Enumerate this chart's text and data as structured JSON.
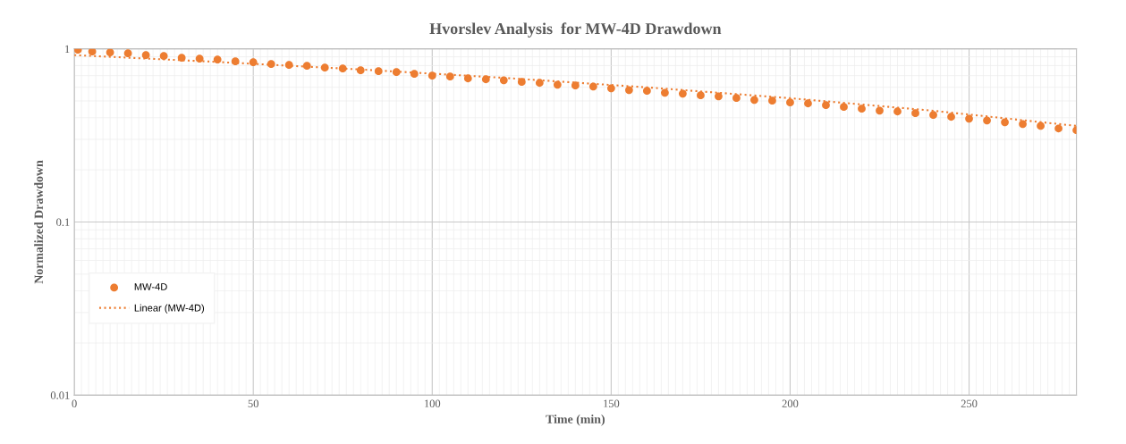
{
  "chart_data": {
    "type": "scatter",
    "title": "Hvorslev Analysis  for MW-4D Drawdown",
    "xlabel": "Time (min)",
    "ylabel": "Normalized Drawdown",
    "log": "y",
    "grid": true,
    "legend": "left",
    "xlim": [
      0,
      280
    ],
    "xticks": [
      0,
      50,
      100,
      150,
      200,
      250
    ],
    "ylim": [
      0.01,
      1
    ],
    "yticks": [
      0.01,
      0.1,
      1
    ],
    "series": [
      {
        "name": "MW-4D",
        "type": "scatter",
        "marker": "circle",
        "color": "#ed7d31",
        "x": [
          1,
          5,
          10,
          15,
          20,
          25,
          30,
          35,
          40,
          45,
          50,
          55,
          60,
          65,
          70,
          75,
          80,
          85,
          90,
          95,
          100,
          105,
          110,
          115,
          120,
          125,
          130,
          135,
          140,
          145,
          150,
          155,
          160,
          165,
          170,
          175,
          180,
          185,
          190,
          195,
          200,
          205,
          210,
          215,
          220,
          225,
          230,
          235,
          240,
          245,
          250,
          255,
          260,
          265,
          270,
          275,
          280
        ],
        "values": [
          0.988,
          0.965,
          0.953,
          0.942,
          0.92,
          0.909,
          0.888,
          0.877,
          0.867,
          0.847,
          0.837,
          0.817,
          0.807,
          0.798,
          0.779,
          0.77,
          0.752,
          0.743,
          0.734,
          0.717,
          0.7,
          0.692,
          0.675,
          0.667,
          0.659,
          0.644,
          0.636,
          0.621,
          0.614,
          0.606,
          0.592,
          0.578,
          0.572,
          0.558,
          0.551,
          0.539,
          0.532,
          0.52,
          0.507,
          0.502,
          0.49,
          0.484,
          0.473,
          0.462,
          0.451,
          0.44,
          0.435,
          0.425,
          0.415,
          0.405,
          0.395,
          0.386,
          0.377,
          0.368,
          0.359,
          0.347,
          0.339
        ]
      },
      {
        "name": "Linear (MW-4D)",
        "type": "line",
        "line_style": "dotted",
        "color": "#ed7d31",
        "x": [
          0,
          40,
          80,
          120,
          160,
          200,
          240,
          280
        ],
        "values": [
          0.92,
          0.84,
          0.76,
          0.68,
          0.599,
          0.519,
          0.439,
          0.359
        ]
      }
    ]
  }
}
